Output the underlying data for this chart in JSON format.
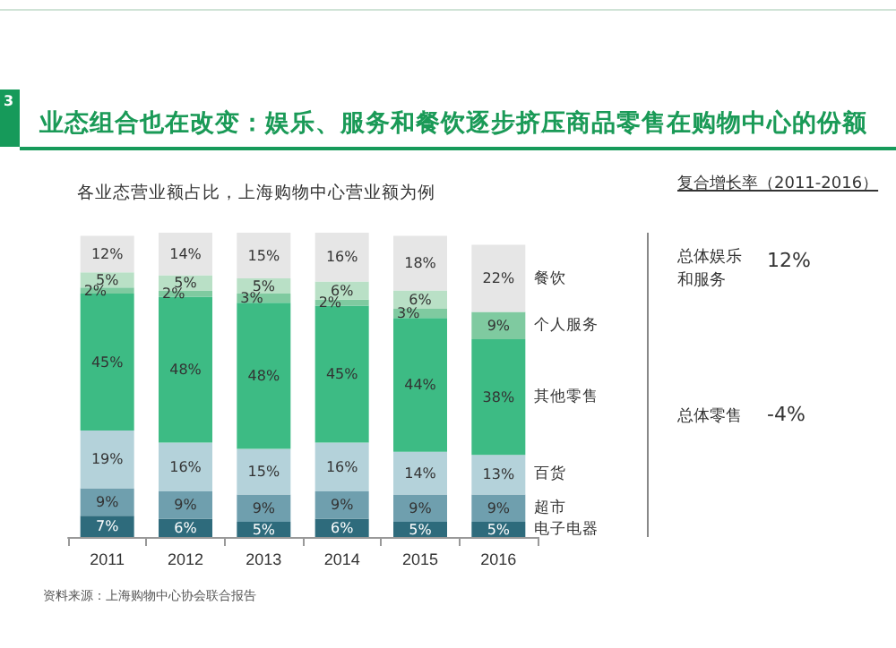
{
  "chart_data": {
    "type": "bar",
    "stacked": true,
    "legend": false,
    "grid": false,
    "title": "业态组合也在改变：娱乐、服务和餐饮逐步挤压商品零售在购物中心的份额",
    "subtitle": "各业态营业额占比，上海购物中心营业额为例",
    "categories": [
      "2011",
      "2012",
      "2013",
      "2014",
      "2015",
      "2016"
    ],
    "series": [
      {
        "name": "电子电器",
        "color": "#2e6b7c",
        "values": [
          7,
          6,
          5,
          6,
          5,
          5
        ],
        "value_labels": [
          "7%",
          "6%",
          "5%",
          "6%",
          "5%",
          "5%"
        ]
      },
      {
        "name": "超市",
        "color": "#6f9fae",
        "values": [
          9,
          9,
          9,
          9,
          9,
          9
        ],
        "value_labels": [
          "9%",
          "9%",
          "9%",
          "9%",
          "9%",
          "9%"
        ]
      },
      {
        "name": "百货",
        "color": "#b4d2da",
        "values": [
          19,
          16,
          15,
          16,
          14,
          13
        ],
        "value_labels": [
          "19%",
          "16%",
          "15%",
          "16%",
          "14%",
          "13%"
        ]
      },
      {
        "name": "其他零售",
        "color": "#3dbb84",
        "values": [
          45,
          48,
          48,
          45,
          44,
          38
        ],
        "value_labels": [
          "45%",
          "48%",
          "48%",
          "45%",
          "44%",
          "38%"
        ]
      },
      {
        "name": "个人服务",
        "color": "#7fcaa0",
        "values": [
          2,
          2,
          3,
          2,
          3,
          9
        ],
        "value_labels": [
          "2%",
          "2%",
          "3%",
          "2%",
          "3%",
          "9%"
        ]
      },
      {
        "color": "#b9e0c6",
        "values": [
          5,
          5,
          5,
          6,
          6,
          null
        ],
        "value_labels": [
          "5%",
          "5%",
          "5%",
          "6%",
          "6%",
          null
        ]
      },
      {
        "name": "餐饮",
        "color": "#e6e6e6",
        "values": [
          12,
          14,
          15,
          16,
          18,
          22
        ],
        "value_labels": [
          "12%",
          "14%",
          "15%",
          "16%",
          "18%",
          "22%"
        ]
      }
    ],
    "annotations": [
      "3",
      "复合增长率（2011-2016）",
      "总体娱乐和服务",
      "12%",
      "总体零售",
      "-4%",
      "资料来源：上海购物中心协会联合报告"
    ]
  }
}
